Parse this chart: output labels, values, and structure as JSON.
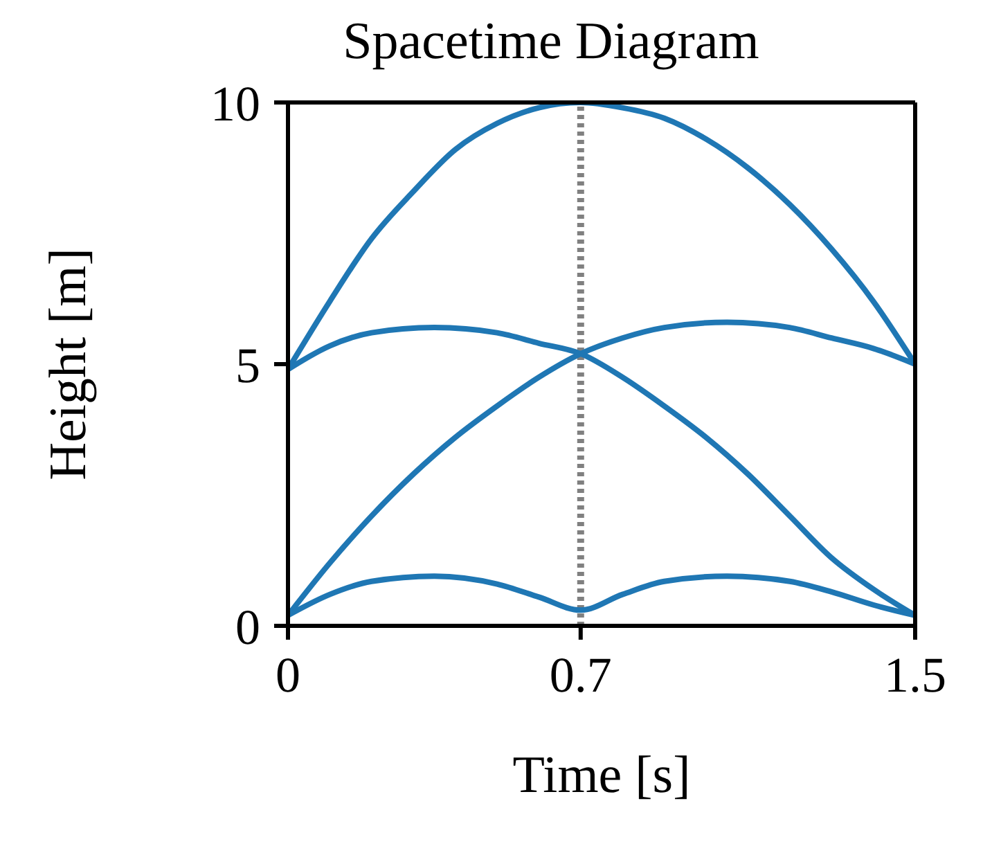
{
  "chart_data": {
    "type": "line",
    "title": "Spacetime Diagram",
    "xlabel": "Time [s]",
    "ylabel": "Height [m]",
    "series": [
      {
        "color": "#1f77b4",
        "x": [
          0,
          0.1,
          0.2,
          0.3,
          0.4,
          0.5,
          0.6,
          0.7,
          0.8,
          0.9,
          1.0,
          1.1,
          1.2,
          1.3,
          1.4,
          1.5
        ],
        "values": [
          4.9,
          6.2,
          7.4,
          8.3,
          9.1,
          9.6,
          9.9,
          10,
          9.9,
          9.7,
          9.3,
          8.75,
          8.05,
          7.2,
          6.2,
          5.0
        ]
      },
      {
        "color": "#1f77b4",
        "x": [
          0,
          0.1,
          0.2,
          0.3,
          0.4,
          0.5,
          0.6,
          0.7,
          0.8,
          0.9,
          1.05,
          1.2,
          1.3,
          1.4,
          1.5
        ],
        "values": [
          0.2,
          1.2,
          2.1,
          2.9,
          3.6,
          4.2,
          4.75,
          5.2,
          5.5,
          5.7,
          5.8,
          5.7,
          5.5,
          5.3,
          5.0
        ]
      },
      {
        "color": "#1f77b4",
        "x": [
          0,
          0.1,
          0.2,
          0.35,
          0.5,
          0.6,
          0.7,
          0.8,
          0.9,
          1.0,
          1.1,
          1.2,
          1.3,
          1.4,
          1.5
        ],
        "values": [
          4.9,
          5.35,
          5.6,
          5.7,
          5.6,
          5.4,
          5.2,
          4.75,
          4.2,
          3.6,
          2.9,
          2.1,
          1.3,
          0.7,
          0.2
        ]
      },
      {
        "color": "#1f77b4",
        "x": [
          0,
          0.1,
          0.2,
          0.35,
          0.5,
          0.6,
          0.7,
          0.8,
          0.9,
          1.05,
          1.2,
          1.3,
          1.4,
          1.5
        ],
        "values": [
          0.2,
          0.6,
          0.85,
          0.95,
          0.8,
          0.55,
          0.3,
          0.6,
          0.85,
          0.95,
          0.85,
          0.65,
          0.4,
          0.2
        ]
      }
    ],
    "xlim": [
      0,
      1.5
    ],
    "ylim": [
      0,
      10
    ],
    "xticks": [
      0,
      0.7,
      1.5
    ],
    "yticks": [
      0,
      5,
      10
    ],
    "ref_lines": [
      {
        "axis": "x",
        "value": 0.7,
        "color": "#808080",
        "line_style": "dotted"
      }
    ],
    "marker": "none",
    "line_style": "solid"
  }
}
